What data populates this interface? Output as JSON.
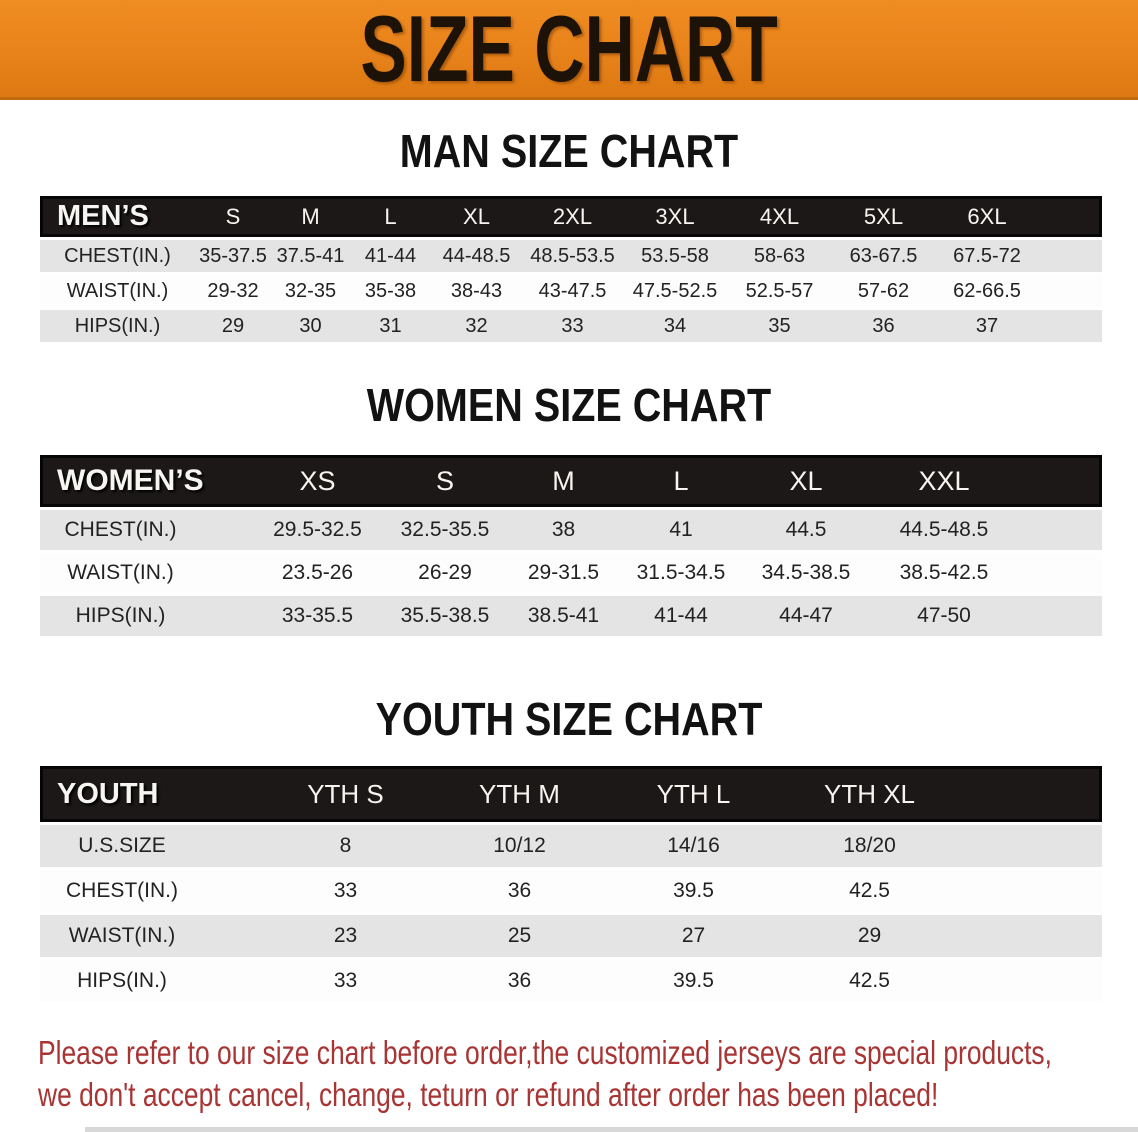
{
  "banner": {
    "title": "SIZE CHART",
    "bg_color": "#e8821a",
    "text_color": "#1c1208"
  },
  "sections": [
    {
      "title": "MAN SIZE CHART",
      "table": {
        "header_label": "MEN’S",
        "columns": [
          "S",
          "M",
          "L",
          "XL",
          "2XL",
          "3XL",
          "4XL",
          "5XL",
          "6XL"
        ],
        "rows": [
          {
            "label": "CHEST(IN.)",
            "values": [
              "35-37.5",
              "37.5-41",
              "41-44",
              "44-48.5",
              "48.5-53.5",
              "53.5-58",
              "58-63",
              "63-67.5",
              "67.5-72"
            ]
          },
          {
            "label": "WAIST(IN.)",
            "values": [
              "29-32",
              "32-35",
              "35-38",
              "38-43",
              "43-47.5",
              "47.5-52.5",
              "52.5-57",
              "57-62",
              "62-66.5"
            ]
          },
          {
            "label": "HIPS(IN.)",
            "values": [
              "29",
              "30",
              "31",
              "32",
              "33",
              "34",
              "35",
              "36",
              "37"
            ]
          }
        ]
      }
    },
    {
      "title": "WOMEN SIZE CHART",
      "table": {
        "header_label": "WOMEN’S",
        "columns": [
          "XS",
          "S",
          "M",
          "L",
          "XL",
          "XXL"
        ],
        "rows": [
          {
            "label": "CHEST(IN.)",
            "values": [
              "29.5-32.5",
              "32.5-35.5",
              "38",
              "41",
              "44.5",
              "44.5-48.5"
            ]
          },
          {
            "label": "WAIST(IN.)",
            "values": [
              "23.5-26",
              "26-29",
              "29-31.5",
              "31.5-34.5",
              "34.5-38.5",
              "38.5-42.5"
            ]
          },
          {
            "label": "HIPS(IN.)",
            "values": [
              "33-35.5",
              "35.5-38.5",
              "38.5-41",
              "41-44",
              "44-47",
              "47-50"
            ]
          }
        ]
      }
    },
    {
      "title": "YOUTH SIZE CHART",
      "table": {
        "header_label": "YOUTH",
        "columns": [
          "YTH S",
          "YTH M",
          "YTH L",
          "YTH XL"
        ],
        "rows": [
          {
            "label": "U.S.SIZE",
            "values": [
              "8",
              "10/12",
              "14/16",
              "18/20"
            ]
          },
          {
            "label": "CHEST(IN.)",
            "values": [
              "33",
              "36",
              "39.5",
              "42.5"
            ]
          },
          {
            "label": "WAIST(IN.)",
            "values": [
              "23",
              "25",
              "27",
              "29"
            ]
          },
          {
            "label": "HIPS(IN.)",
            "values": [
              "33",
              "36",
              "39.5",
              "42.5"
            ]
          }
        ]
      }
    }
  ],
  "disclaimer": {
    "line1": "Please refer to our size chart before order,the customized jerseys are special products,",
    "line2": "we don't accept cancel, change, teturn or refund after order has been placed!",
    "color": "#a83434"
  },
  "colors": {
    "table_header_black": "#1c1818",
    "row_gray": "#e4e4e4",
    "row_white": "#fdfdfd"
  }
}
